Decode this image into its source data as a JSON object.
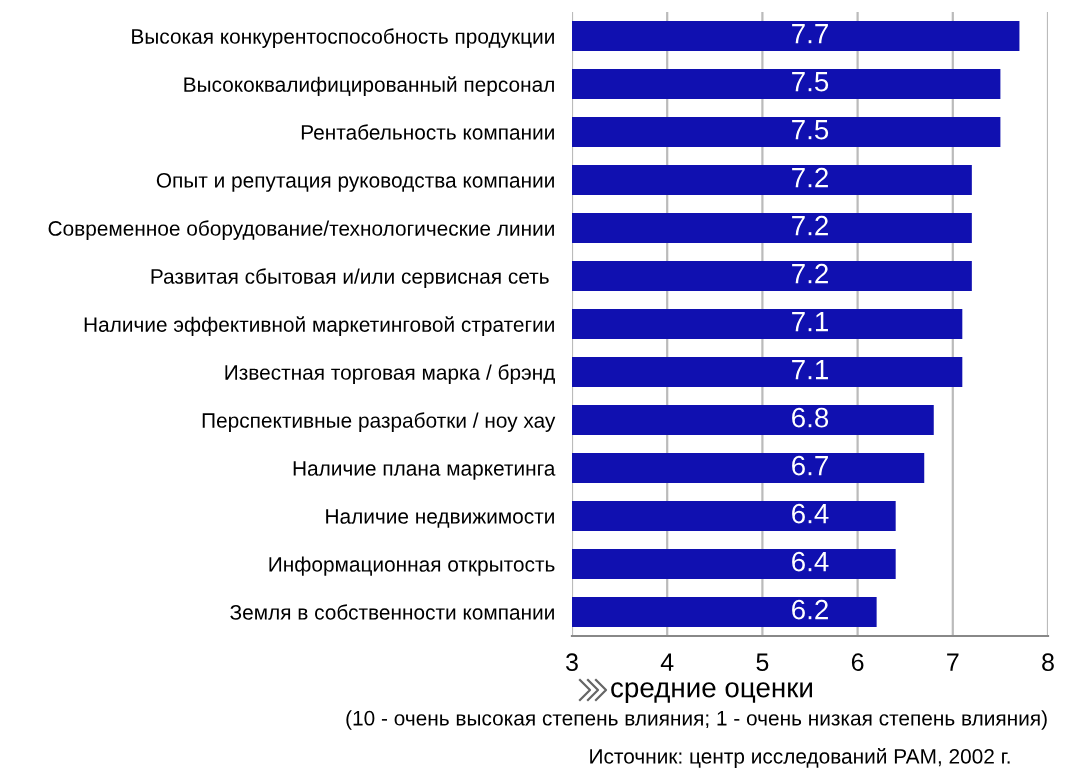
{
  "chart_data": {
    "type": "bar",
    "orientation": "horizontal",
    "categories": [
      "Высокая конкурентоспособность продукции",
      "Высококвалифицированный персонал",
      "Рентабельность компании",
      "Опыт и репутация руководства компании",
      "Современное оборудование/технологические линии",
      "Развитая сбытовая и/или сервисная сеть ",
      "Наличие эффективной маркетинговой стратегии",
      "Известная торговая марка / брэнд",
      "Перспективные разработки / ноу хау",
      "Наличие плана маркетинга",
      "Наличие недвижимости",
      "Информационная открытость",
      "Земля в собственности компании"
    ],
    "values": [
      7.7,
      7.5,
      7.5,
      7.2,
      7.2,
      7.2,
      7.1,
      7.1,
      6.8,
      6.7,
      6.4,
      6.4,
      6.2
    ],
    "color": "#1010b0",
    "data_labels": true,
    "xlim": [
      3,
      8
    ],
    "xticks": [
      3,
      4,
      5,
      6,
      7,
      8
    ],
    "grid": "x",
    "xlabel": "средние оценки",
    "annotations": [
      "(10 - очень высокая степень влияния; 1 - очень низкая степень влияния)",
      "Источник: центр исследований РАМ, 2002 г."
    ]
  }
}
